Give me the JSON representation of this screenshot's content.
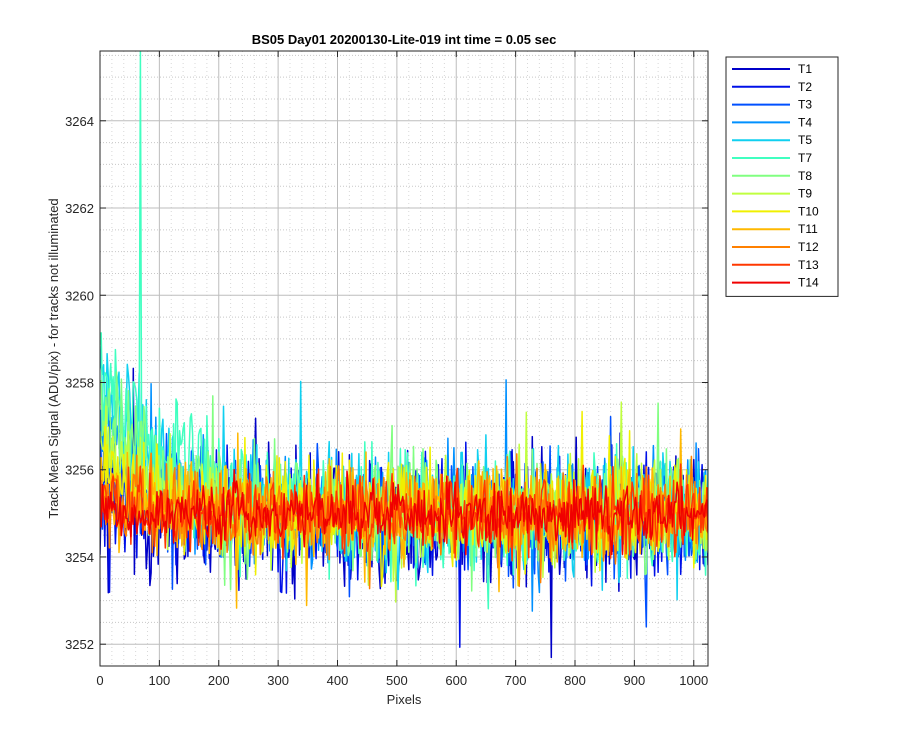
{
  "chart_data": {
    "type": "line",
    "title": "BS05 Day01 20200130-Lite-019 int time = 0.05 sec",
    "xlabel": "Pixels",
    "ylabel": "Track Mean Signal (ADU/pix) - for tracks not illuminated",
    "xlim": [
      0,
      1024
    ],
    "ylim": [
      3251.5,
      3265.6
    ],
    "xticks": [
      "0",
      "100",
      "200",
      "300",
      "400",
      "500",
      "600",
      "700",
      "800",
      "900",
      "1000"
    ],
    "yticks": [
      "3252",
      "3254",
      "3256",
      "3258",
      "3260",
      "3262",
      "3264"
    ],
    "grid": true,
    "minor_grid": true,
    "legend_position": "outside-top-right",
    "series": [
      {
        "name": "T1",
        "color": "#0000c8",
        "baseline": 3254.8,
        "noise_amplitude": 2.2,
        "start_excess": 0.6,
        "decay_pixels": 80
      },
      {
        "name": "T2",
        "color": "#0010e8",
        "baseline": 3254.9,
        "noise_amplitude": 2.0,
        "start_excess": 0.8,
        "decay_pixels": 80
      },
      {
        "name": "T3",
        "color": "#0050ff",
        "baseline": 3255.0,
        "noise_amplitude": 1.9,
        "start_excess": 1.2,
        "decay_pixels": 90
      },
      {
        "name": "T4",
        "color": "#0090ff",
        "baseline": 3255.0,
        "noise_amplitude": 1.9,
        "start_excess": 2.0,
        "decay_pixels": 100
      },
      {
        "name": "T5",
        "color": "#10d0f0",
        "baseline": 3255.0,
        "noise_amplitude": 1.9,
        "start_excess": 3.0,
        "decay_pixels": 110
      },
      {
        "name": "T7",
        "color": "#40ffc0",
        "baseline": 3255.0,
        "noise_amplitude": 1.9,
        "start_excess": 3.6,
        "decay_pixels": 110,
        "spike": {
          "x": 68,
          "y": 3265.6
        }
      },
      {
        "name": "T8",
        "color": "#80ff80",
        "baseline": 3255.0,
        "noise_amplitude": 1.8,
        "start_excess": 2.6,
        "decay_pixels": 100
      },
      {
        "name": "T9",
        "color": "#c0ff40",
        "baseline": 3255.0,
        "noise_amplitude": 1.7,
        "start_excess": 1.6,
        "decay_pixels": 90
      },
      {
        "name": "T10",
        "color": "#f0f000",
        "baseline": 3255.0,
        "noise_amplitude": 1.6,
        "start_excess": 1.0,
        "decay_pixels": 80
      },
      {
        "name": "T11",
        "color": "#ffb800",
        "baseline": 3255.0,
        "noise_amplitude": 1.5,
        "start_excess": 0.6,
        "decay_pixels": 80
      },
      {
        "name": "T12",
        "color": "#ff8000",
        "baseline": 3255.0,
        "noise_amplitude": 1.4,
        "start_excess": 0.4,
        "decay_pixels": 70
      },
      {
        "name": "T13",
        "color": "#ff3800",
        "baseline": 3255.0,
        "noise_amplitude": 1.2,
        "start_excess": 0.2,
        "decay_pixels": 60
      },
      {
        "name": "T14",
        "color": "#f00000",
        "baseline": 3255.0,
        "noise_amplitude": 1.0,
        "start_excess": 0.0,
        "decay_pixels": 60
      }
    ]
  }
}
